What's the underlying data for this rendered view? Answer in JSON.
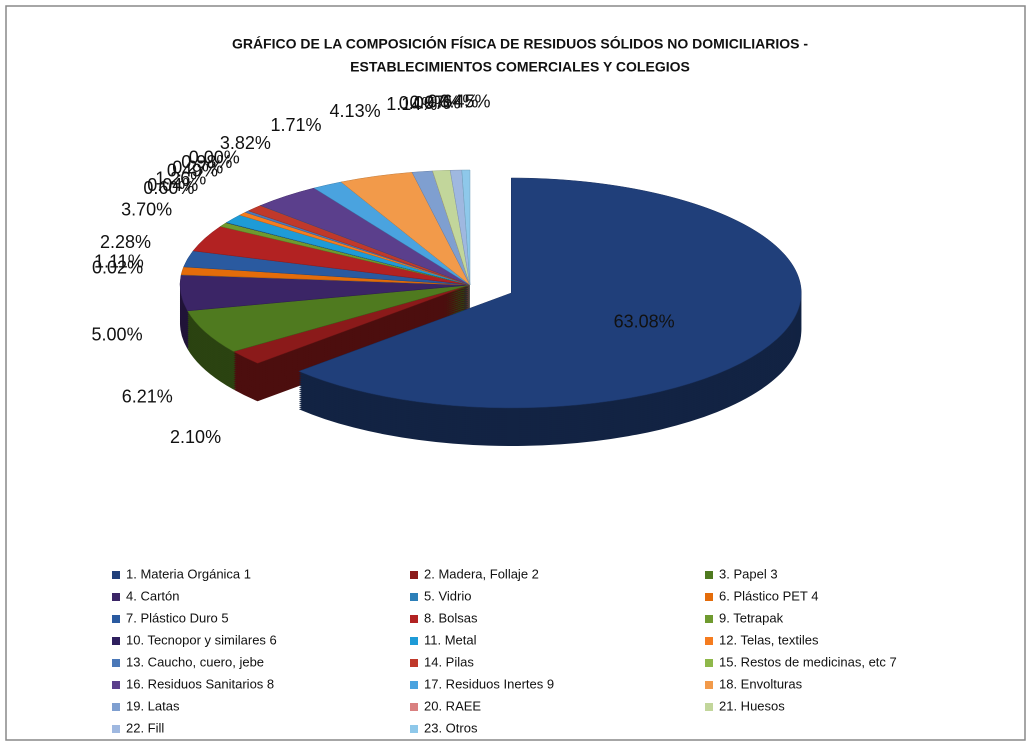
{
  "chart_data": {
    "type": "pie",
    "title": [
      "GRÁFICO DE LA COMPOSICIÓN FÍSICA DE RESIDUOS SÓLIDOS NO DOMICILIARIOS -",
      "ESTABLECIMIENTOS COMERCIALES Y COLEGIOS"
    ],
    "categories": [
      "1.   Materia Orgánica 1",
      "2.   Madera, Follaje 2",
      "3.   Papel 3",
      "4.   Cartón",
      "5.   Vidrio",
      "6.   Plástico PET 4",
      "7.   Plástico Duro 5",
      "8.   Bolsas",
      "9.   Tetrapak",
      "10.   Tecnopor y similares 6",
      "11.   Metal",
      "12.   Telas, textiles",
      "13.   Caucho, cuero, jebe",
      "14.   Pilas",
      "15.   Restos de medicinas, etc 7",
      "16.   Residuos Sanitarios 8",
      "17.   Residuos Inertes 9",
      "18.   Envolturas",
      "19. Latas",
      "20. RAEE",
      "21. Huesos",
      "22. Fill",
      "23. Otros"
    ],
    "values": [
      63.08,
      2.1,
      6.21,
      5.0,
      0.02,
      1.11,
      2.28,
      3.7,
      0.6,
      0.04,
      1.26,
      0.49,
      0.27,
      0.98,
      0.0,
      3.82,
      1.71,
      4.13,
      1.14,
      0.0,
      0.97,
      0.64,
      0.45
    ],
    "value_labels": [
      "63.08%",
      "2.10%",
      "6.21%",
      "5.00%",
      "0.02%",
      "1.11%",
      "2.28%",
      "3.70%",
      "0.60%",
      "0.04%",
      "1.26%",
      "0.49%",
      "0.27%",
      "0.98%",
      "0.00%",
      "3.82%",
      "1.71%",
      "4.13%",
      "1.14%",
      "0.00%",
      "0.97%",
      "0.64%",
      "0.45%"
    ],
    "colors": [
      "#203f7a",
      "#8b1a1a",
      "#4f7a1f",
      "#3b2566",
      "#2c7fb8",
      "#e46c0a",
      "#2a5aa0",
      "#b22222",
      "#6f9a2f",
      "#2e1f5e",
      "#1e9bd7",
      "#f57c1f",
      "#4a78b8",
      "#c0392b",
      "#8fb84a",
      "#5b3f8c",
      "#4aa3df",
      "#f29a4a",
      "#7f9fd0",
      "#d98080",
      "#c2d69b",
      "#9fb8e0",
      "#8ec8ea"
    ],
    "legend": "bottom"
  }
}
